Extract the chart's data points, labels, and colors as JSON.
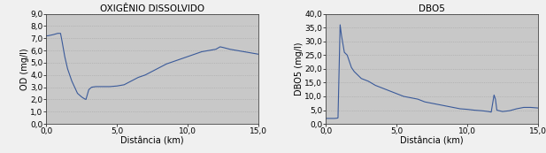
{
  "chart1": {
    "title": "OXIGÊNIO DISSOLVIDO",
    "xlabel": "Distância (km)",
    "ylabel": "OD (mg/l)",
    "xlim": [
      0,
      15.0
    ],
    "ylim": [
      0,
      9.0
    ],
    "xticks": [
      0.0,
      5.0,
      10.0,
      15.0
    ],
    "yticks": [
      0.0,
      1.0,
      2.0,
      3.0,
      4.0,
      5.0,
      6.0,
      7.0,
      8.0,
      9.0
    ],
    "x": [
      0.0,
      0.05,
      0.1,
      0.3,
      0.5,
      0.8,
      1.0,
      1.1,
      1.3,
      1.5,
      1.8,
      2.0,
      2.2,
      2.5,
      2.7,
      2.8,
      3.0,
      3.2,
      3.5,
      4.0,
      4.5,
      5.0,
      5.5,
      6.0,
      6.5,
      7.0,
      7.5,
      8.0,
      8.5,
      9.0,
      9.5,
      10.0,
      10.5,
      11.0,
      11.5,
      12.0,
      12.3,
      12.5,
      13.0,
      13.5,
      14.0,
      14.5,
      15.0
    ],
    "y": [
      7.2,
      7.2,
      7.2,
      7.25,
      7.3,
      7.4,
      7.4,
      6.8,
      5.5,
      4.5,
      3.5,
      3.0,
      2.5,
      2.2,
      2.05,
      2.0,
      2.8,
      3.0,
      3.05,
      3.05,
      3.05,
      3.1,
      3.2,
      3.5,
      3.8,
      4.0,
      4.3,
      4.6,
      4.9,
      5.1,
      5.3,
      5.5,
      5.7,
      5.9,
      6.0,
      6.1,
      6.3,
      6.25,
      6.1,
      6.0,
      5.9,
      5.8,
      5.7
    ],
    "line_color": "#3a5a9a",
    "bg_color": "#c8c8c8",
    "grid_color": "#a0a0a0",
    "title_fontsize": 7.5,
    "label_fontsize": 7,
    "tick_fontsize": 6.5
  },
  "chart2": {
    "title": "DBO5",
    "xlabel": "Distância (km)",
    "ylabel": "DBO5 (mg/l)",
    "xlim": [
      0,
      15.0
    ],
    "ylim": [
      0,
      40.0
    ],
    "xticks": [
      0.0,
      5.0,
      10.0,
      15.0
    ],
    "yticks": [
      0.0,
      5.0,
      10.0,
      15.0,
      20.0,
      25.0,
      30.0,
      35.0,
      40.0
    ],
    "x": [
      0.0,
      0.05,
      0.3,
      0.6,
      0.8,
      0.85,
      1.0,
      1.1,
      1.3,
      1.5,
      1.8,
      2.0,
      2.5,
      3.0,
      3.5,
      4.0,
      4.5,
      5.0,
      5.5,
      6.0,
      6.5,
      7.0,
      7.5,
      8.0,
      8.5,
      9.0,
      9.5,
      10.0,
      10.5,
      11.0,
      11.2,
      11.5,
      11.7,
      11.9,
      12.0,
      12.1,
      12.5,
      13.0,
      13.5,
      14.0,
      14.5,
      15.0
    ],
    "y": [
      2.0,
      2.0,
      2.0,
      2.0,
      2.1,
      2.2,
      36.0,
      32.0,
      26.0,
      25.0,
      20.5,
      19.0,
      16.5,
      15.5,
      14.0,
      13.0,
      12.0,
      11.0,
      10.0,
      9.5,
      9.0,
      8.0,
      7.5,
      7.0,
      6.5,
      6.0,
      5.5,
      5.3,
      5.0,
      4.8,
      4.7,
      4.5,
      4.3,
      10.5,
      9.0,
      5.0,
      4.5,
      4.8,
      5.5,
      6.0,
      6.0,
      5.8
    ],
    "line_color": "#3a5a9a",
    "bg_color": "#c8c8c8",
    "grid_color": "#a0a0a0",
    "title_fontsize": 7.5,
    "label_fontsize": 7,
    "tick_fontsize": 6.5
  },
  "fig_bg": "#f0f0f0",
  "border_color": "#888888"
}
